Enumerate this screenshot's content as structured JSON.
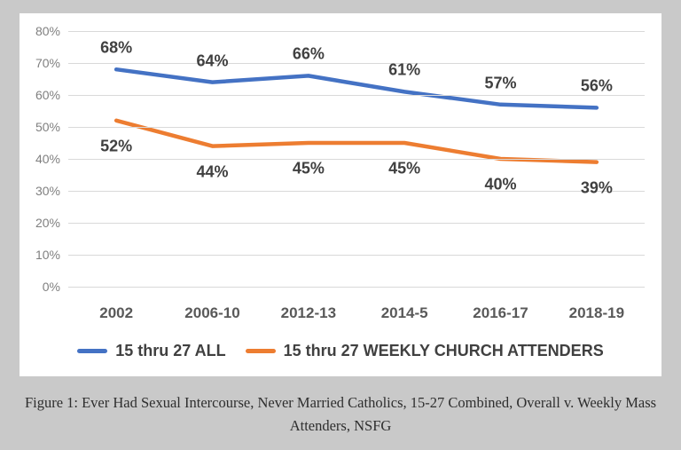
{
  "caption": {
    "line1": "Figure 1: Ever Had Sexual Intercourse, Never Married Catholics, 15-27 Combined, Overall v. Weekly Mass",
    "line2": "Attenders, NSFG"
  },
  "chart_data": {
    "type": "line",
    "categories": [
      "2002",
      "2006-10",
      "2012-13",
      "2014-5",
      "2016-17",
      "2018-19"
    ],
    "series": [
      {
        "name": "15 thru 27 ALL",
        "color": "#4472c4",
        "values": [
          68,
          64,
          66,
          61,
          57,
          56
        ],
        "data_labels": [
          "68%",
          "64%",
          "66%",
          "61%",
          "57%",
          "56%"
        ],
        "label_position": "above"
      },
      {
        "name": "15 thru 27 WEEKLY CHURCH ATTENDERS",
        "color": "#ed7d31",
        "values": [
          52,
          44,
          45,
          45,
          40,
          39
        ],
        "data_labels": [
          "52%",
          "44%",
          "45%",
          "45%",
          "40%",
          "39%"
        ],
        "label_position": "below"
      }
    ],
    "y_ticks": [
      "80%",
      "70%",
      "60%",
      "50%",
      "40%",
      "30%",
      "20%",
      "10%",
      "0%"
    ],
    "ylim": [
      0,
      80
    ],
    "y_tick_step": 10,
    "grid": true,
    "legend_position": "bottom",
    "title": "",
    "xlabel": "",
    "ylabel": ""
  },
  "appearance": {
    "page_background": "#c9c9c9",
    "card_background": "#ffffff",
    "gridline_color": "#d9d9d9",
    "ytick_color": "#7f7f7f",
    "xtick_color": "#595959",
    "data_label_color": "#404040",
    "caption_color": "#2e2e2e"
  }
}
